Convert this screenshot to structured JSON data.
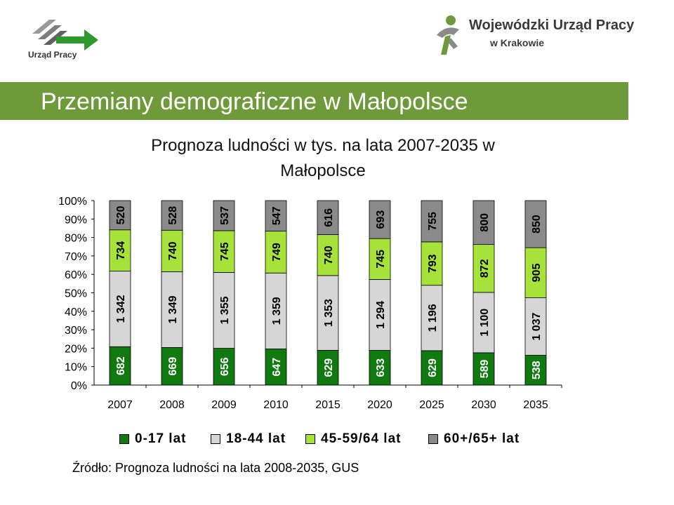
{
  "header": {
    "logo_left_text": "Urząd Pracy",
    "logo_right_line1": "Wojewódzki Urząd Pracy",
    "logo_right_line2": "w Krakowie",
    "title": "Przemiany demograficzne w Małopolsce"
  },
  "colors": {
    "band": "#6e9a3a",
    "s0": "#107a10",
    "s1": "#d6d6d6",
    "s2": "#a6e23a",
    "s3": "#8a8a8a"
  },
  "chart_data": {
    "type": "bar",
    "stacked": "percent",
    "title_line1": "Prognoza ludności w tys. na lata 2007-2035 w",
    "title_line2": "Małopolsce",
    "categories": [
      "2007",
      "2008",
      "2009",
      "2010",
      "2015",
      "2020",
      "2025",
      "2030",
      "2035"
    ],
    "series": [
      {
        "name": "0-17 lat",
        "values": [
          682,
          669,
          656,
          647,
          629,
          633,
          629,
          589,
          538
        ],
        "labels": [
          "682",
          "669",
          "656",
          "647",
          "629",
          "633",
          "629",
          "589",
          "538"
        ]
      },
      {
        "name": "18-44 lat",
        "values": [
          1342,
          1349,
          1355,
          1359,
          1353,
          1294,
          1196,
          1100,
          1037
        ],
        "labels": [
          "1 342",
          "1 349",
          "1 355",
          "1 359",
          "1 353",
          "1 294",
          "1 196",
          "1 100",
          "1 037"
        ]
      },
      {
        "name": "45-59/64 lat",
        "values": [
          734,
          740,
          745,
          749,
          740,
          745,
          793,
          872,
          905
        ],
        "labels": [
          "734",
          "740",
          "745",
          "749",
          "740",
          "745",
          "793",
          "872",
          "905"
        ]
      },
      {
        "name": "60+/65+ lat",
        "values": [
          520,
          528,
          537,
          547,
          616,
          693,
          755,
          800,
          850
        ],
        "labels": [
          "520",
          "528",
          "537",
          "547",
          "616",
          "693",
          "755",
          "800",
          "850"
        ]
      }
    ],
    "y_ticks": [
      "0%",
      "10%",
      "20%",
      "30%",
      "40%",
      "50%",
      "60%",
      "70%",
      "80%",
      "90%",
      "100%"
    ],
    "ylim": [
      0,
      100
    ],
    "grid": false,
    "legend_position": "bottom"
  },
  "source": "Źródło: Prognoza ludności na lata 2008-2035, GUS"
}
